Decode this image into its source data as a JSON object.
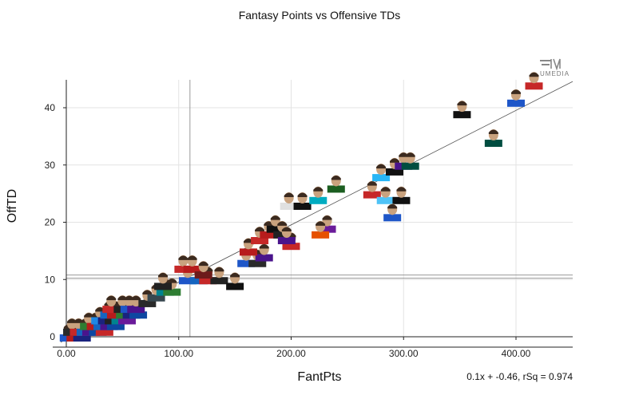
{
  "chart_data": {
    "type": "scatter",
    "title": "Fantasy Points vs Offensive TDs",
    "xlabel": "FantPts",
    "ylabel": "OffTD",
    "xlim": [
      -10,
      450
    ],
    "ylim": [
      -1.5,
      45
    ],
    "x_ticks": [
      0,
      100,
      200,
      300,
      400
    ],
    "x_tick_labels": [
      "0.00",
      "100.00",
      "200.00",
      "300.00",
      "400.00"
    ],
    "y_ticks": [
      0,
      10,
      20,
      30,
      40
    ],
    "y_tick_labels": [
      "0",
      "10",
      "20",
      "30",
      "40"
    ],
    "grid": true,
    "reference_lines": {
      "x_mean": 110,
      "y_mean": 10.5
    },
    "trendline": {
      "slope": 0.1,
      "intercept": -0.46,
      "label": "0.1x + -0.46, rSq = 0.974"
    },
    "watermark": "UMEDIA",
    "marker_style": "player headshots",
    "points": [
      {
        "x": 2,
        "y": 0,
        "c": "#1e56c8"
      },
      {
        "x": 8,
        "y": 0,
        "c": "#b71c1c"
      },
      {
        "x": 14,
        "y": 0,
        "c": "#1a237e"
      },
      {
        "x": 5,
        "y": 1,
        "c": "#2a2a2a"
      },
      {
        "x": 11,
        "y": 1,
        "c": "#c62828"
      },
      {
        "x": 17,
        "y": 1,
        "c": "#1565c0"
      },
      {
        "x": 22,
        "y": 1,
        "c": "#4a148c"
      },
      {
        "x": 28,
        "y": 1,
        "c": "#0d47a1"
      },
      {
        "x": 34,
        "y": 1,
        "c": "#c62828"
      },
      {
        "x": 20,
        "y": 2,
        "c": "#2e7d32"
      },
      {
        "x": 26,
        "y": 2,
        "c": "#b71c1c"
      },
      {
        "x": 32,
        "y": 2,
        "c": "#1565c0"
      },
      {
        "x": 38,
        "y": 2,
        "c": "#4a148c"
      },
      {
        "x": 44,
        "y": 2,
        "c": "#0d47a1"
      },
      {
        "x": 30,
        "y": 3,
        "c": "#1e88e5"
      },
      {
        "x": 36,
        "y": 3,
        "c": "#1a237e"
      },
      {
        "x": 42,
        "y": 3,
        "c": "#222222"
      },
      {
        "x": 48,
        "y": 3,
        "c": "#00838f"
      },
      {
        "x": 54,
        "y": 3,
        "c": "#6a1b9a"
      },
      {
        "x": 38,
        "y": 4,
        "c": "#1565c0"
      },
      {
        "x": 44,
        "y": 4,
        "c": "#b71c1c"
      },
      {
        "x": 52,
        "y": 4,
        "c": "#2e7d32"
      },
      {
        "x": 58,
        "y": 4,
        "c": "#1a237e"
      },
      {
        "x": 64,
        "y": 4,
        "c": "#0d47a1"
      },
      {
        "x": 40,
        "y": 5,
        "c": "#c62828"
      },
      {
        "x": 50,
        "y": 5,
        "c": "#222222"
      },
      {
        "x": 56,
        "y": 5,
        "c": "#1e56c8"
      },
      {
        "x": 62,
        "y": 5,
        "c": "#4a148c"
      },
      {
        "x": 72,
        "y": 6,
        "c": "#2a2a2a"
      },
      {
        "x": 80,
        "y": 7,
        "c": "#37474f"
      },
      {
        "x": 88,
        "y": 8,
        "c": "#00838f"
      },
      {
        "x": 94,
        "y": 8,
        "c": "#2e7d32"
      },
      {
        "x": 86,
        "y": 9,
        "c": "#222222"
      },
      {
        "x": 108,
        "y": 10,
        "c": "#1e56c8"
      },
      {
        "x": 118,
        "y": 10,
        "c": "#1565c0"
      },
      {
        "x": 126,
        "y": 10,
        "c": "#c62828"
      },
      {
        "x": 136,
        "y": 10,
        "c": "#222222"
      },
      {
        "x": 150,
        "y": 9,
        "c": "#111111"
      },
      {
        "x": 104,
        "y": 12,
        "c": "#c62828"
      },
      {
        "x": 112,
        "y": 12,
        "c": "#b71c1c"
      },
      {
        "x": 122,
        "y": 11,
        "c": "#6d1b1b"
      },
      {
        "x": 160,
        "y": 13,
        "c": "#1e56c8"
      },
      {
        "x": 170,
        "y": 13,
        "c": "#2a2a2a"
      },
      {
        "x": 176,
        "y": 14,
        "c": "#4a148c"
      },
      {
        "x": 162,
        "y": 15,
        "c": "#b71c1c"
      },
      {
        "x": 172,
        "y": 17,
        "c": "#c62828"
      },
      {
        "x": 180,
        "y": 18,
        "c": "#b71c1c"
      },
      {
        "x": 186,
        "y": 19,
        "c": "#111111"
      },
      {
        "x": 192,
        "y": 18,
        "c": "#222222"
      },
      {
        "x": 200,
        "y": 16,
        "c": "#c62828"
      },
      {
        "x": 196,
        "y": 17,
        "c": "#4a148c"
      },
      {
        "x": 198,
        "y": 23,
        "c": "#e0e0e0"
      },
      {
        "x": 210,
        "y": 23,
        "c": "#111111"
      },
      {
        "x": 224,
        "y": 24,
        "c": "#00acc1"
      },
      {
        "x": 240,
        "y": 26,
        "c": "#1b5e20"
      },
      {
        "x": 232,
        "y": 19,
        "c": "#6a1b9a"
      },
      {
        "x": 226,
        "y": 18,
        "c": "#e65100"
      },
      {
        "x": 272,
        "y": 25,
        "c": "#c62828"
      },
      {
        "x": 284,
        "y": 24,
        "c": "#4fc3f7"
      },
      {
        "x": 298,
        "y": 24,
        "c": "#111111"
      },
      {
        "x": 290,
        "y": 21,
        "c": "#1e56c8"
      },
      {
        "x": 280,
        "y": 28,
        "c": "#29b6f6"
      },
      {
        "x": 292,
        "y": 29,
        "c": "#111111"
      },
      {
        "x": 300,
        "y": 30,
        "c": "#4a148c"
      },
      {
        "x": 306,
        "y": 30,
        "c": "#004d40"
      },
      {
        "x": 352,
        "y": 39,
        "c": "#111111"
      },
      {
        "x": 380,
        "y": 34,
        "c": "#004d40"
      },
      {
        "x": 400,
        "y": 41,
        "c": "#1e56c8"
      },
      {
        "x": 416,
        "y": 44,
        "c": "#c62828"
      }
    ]
  }
}
